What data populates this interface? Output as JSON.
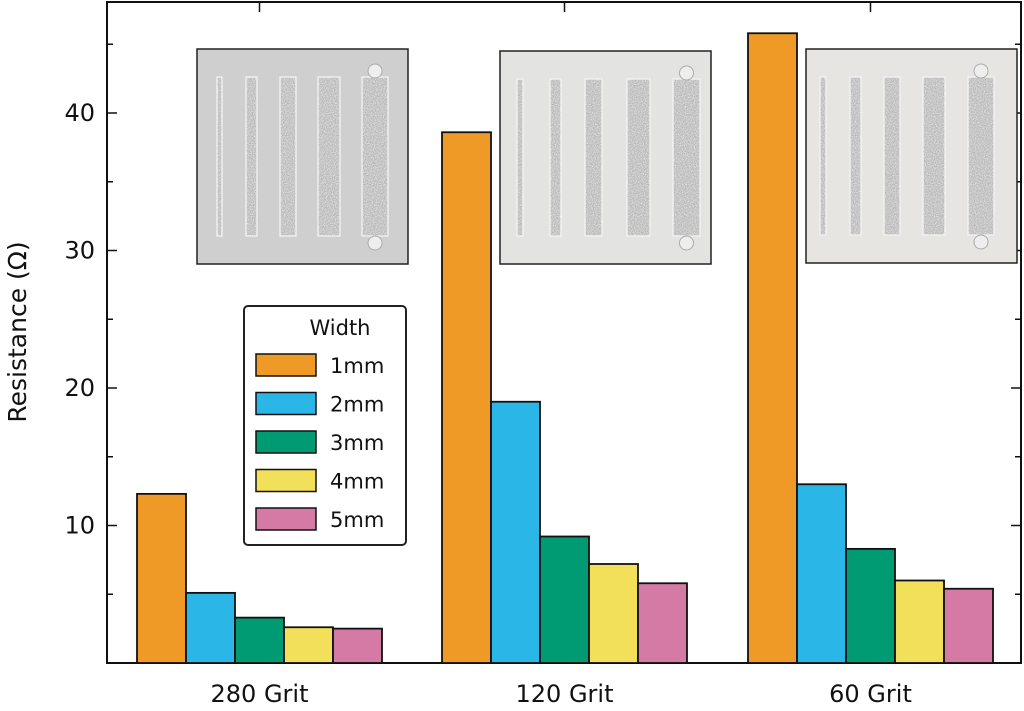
{
  "chart_data": {
    "type": "bar",
    "categories": [
      "280 Grit",
      "120 Grit",
      "60 Grit"
    ],
    "ylabel": "Resistance (Ω)",
    "xlabel": "",
    "ylim": [
      0,
      48
    ],
    "yticks": [
      10,
      20,
      30,
      40
    ],
    "legend": {
      "title": "Width",
      "placement": "center-left"
    },
    "series": [
      {
        "name": "1mm",
        "color": "#ef9a26",
        "values": [
          12.3,
          38.6,
          45.8
        ]
      },
      {
        "name": "2mm",
        "color": "#2bb6e8",
        "values": [
          5.1,
          19.0,
          13.0
        ]
      },
      {
        "name": "3mm",
        "color": "#009b72",
        "values": [
          3.3,
          9.2,
          8.3
        ]
      },
      {
        "name": "4mm",
        "color": "#f2e05a",
        "values": [
          2.6,
          7.2,
          6.0
        ]
      },
      {
        "name": "5mm",
        "color": "#d57aa5",
        "values": [
          2.5,
          5.8,
          5.4
        ]
      }
    ],
    "insets": [
      {
        "description": "photo of printed traces",
        "category": "280 Grit"
      },
      {
        "description": "photo of printed traces",
        "category": "120 Grit"
      },
      {
        "description": "photo of printed traces",
        "category": "60 Grit"
      }
    ]
  }
}
